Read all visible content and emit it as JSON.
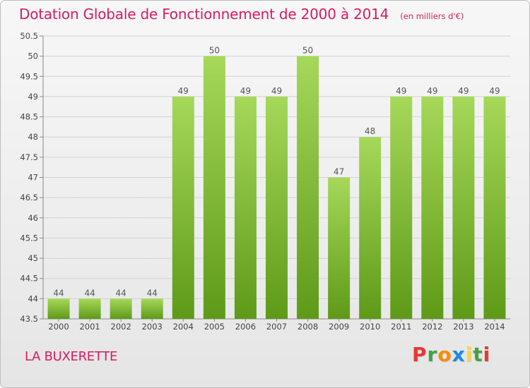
{
  "header": {
    "title": "Dotation Globale de Fonctionnement de 2000 à 2014",
    "subtitle": "(en milliers d'€)"
  },
  "footer": {
    "location": "LA BUXERETTE",
    "brand": "Proxiti"
  },
  "colors": {
    "title": "#d81b60",
    "bar_light": "#a6d85a",
    "bar_dark": "#5e9a17",
    "brand_letters": [
      "#e53935",
      "#43a047",
      "#fb8c00",
      "#1e88e5",
      "#fdd835",
      "#43a047",
      "#e53935"
    ]
  },
  "chart_data": {
    "type": "bar",
    "categories": [
      "2000",
      "2001",
      "2002",
      "2003",
      "2004",
      "2005",
      "2006",
      "2007",
      "2008",
      "2009",
      "2010",
      "2011",
      "2012",
      "2013",
      "2014"
    ],
    "values": [
      44,
      44,
      44,
      44,
      49,
      50,
      49,
      49,
      50,
      47,
      48,
      49,
      49,
      49,
      49
    ],
    "value_labels": [
      "44",
      "44",
      "44",
      "44",
      "49",
      "50",
      "49",
      "49",
      "50",
      "47",
      "48",
      "49",
      "49",
      "49",
      "49"
    ],
    "y_ticks": [
      "43.5",
      "44",
      "44.5",
      "45",
      "45.5",
      "46",
      "46.5",
      "47",
      "47.5",
      "48",
      "48.5",
      "49",
      "49.5",
      "50",
      "50.5"
    ],
    "ylim": [
      43.5,
      50.5
    ],
    "grid": true,
    "title": "Dotation Globale de Fonctionnement de 2000 à 2014",
    "xlabel": "",
    "ylabel": ""
  }
}
